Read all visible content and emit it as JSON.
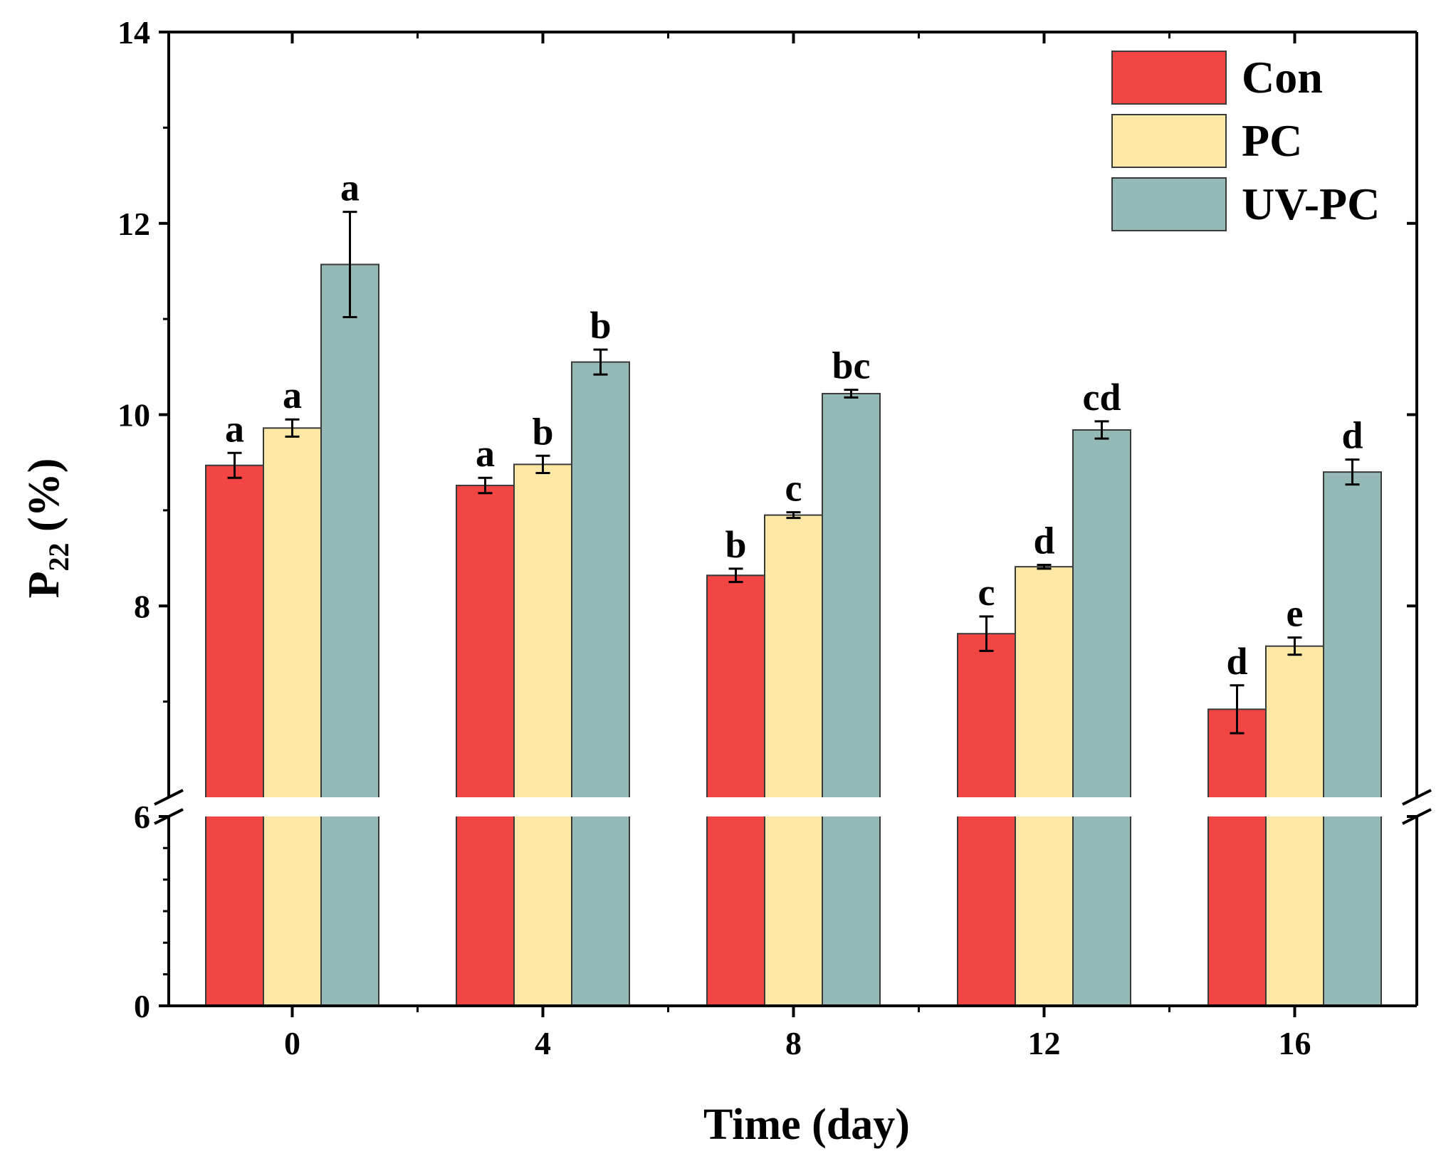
{
  "chart_data": {
    "type": "bar",
    "xlabel": "Time (day)",
    "ylabel_main": "P",
    "ylabel_sub": "22",
    "ylabel_unit": " (%)",
    "categories": [
      "0",
      "4",
      "8",
      "12",
      "16"
    ],
    "y_axis_break": [
      0,
      6
    ],
    "ylim": [
      0,
      14
    ],
    "y_ticks_lower": [
      0
    ],
    "y_ticks_upper": [
      6,
      8,
      10,
      12,
      14
    ],
    "legend_position": "top-right",
    "series": [
      {
        "name": "Con",
        "color": "#f44545",
        "values": [
          9.47,
          9.26,
          8.32,
          7.71,
          6.92
        ],
        "errors": [
          0.13,
          0.08,
          0.07,
          0.18,
          0.25
        ],
        "letters": [
          "a",
          "a",
          "b",
          "c",
          "d"
        ]
      },
      {
        "name": "PC",
        "color": "#fde9a5",
        "values": [
          9.86,
          9.48,
          8.95,
          8.41,
          7.58
        ],
        "errors": [
          0.09,
          0.09,
          0.03,
          0.02,
          0.09
        ],
        "letters": [
          "a",
          "b",
          "c",
          "d",
          "e"
        ]
      },
      {
        "name": "UV-PC",
        "color": "#94b9b6",
        "values": [
          11.57,
          10.55,
          10.22,
          9.84,
          9.4
        ],
        "errors": [
          0.55,
          0.13,
          0.04,
          0.09,
          0.13
        ],
        "letters": [
          "a",
          "b",
          "bc",
          "cd",
          "d"
        ]
      }
    ]
  }
}
